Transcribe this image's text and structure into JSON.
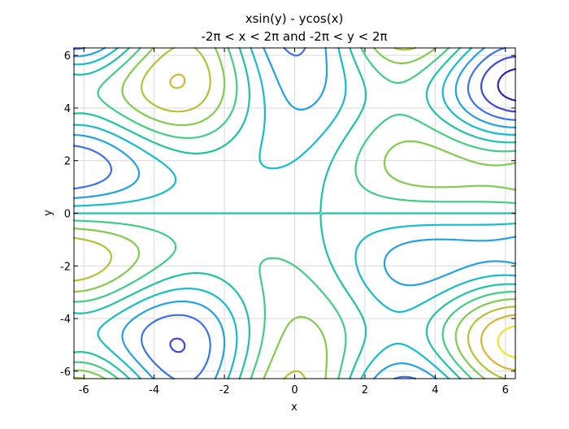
{
  "chart_data": {
    "type": "contour",
    "function": "x*sin(y) - y*cos(x)",
    "title": "xsin(y) - ycos(x)",
    "subtitle": "-2π < x < 2π and -2π < y < 2π",
    "xlabel": "x",
    "ylabel": "y",
    "xlim": [
      -6.283,
      6.283
    ],
    "ylim": [
      -6.283,
      6.283
    ],
    "xticks": [
      -6,
      -4,
      -2,
      0,
      2,
      4,
      6
    ],
    "yticks": [
      -6,
      -4,
      -2,
      0,
      2,
      4,
      6
    ],
    "grid": true,
    "levels": [
      -10,
      -8,
      -6,
      -4,
      -2,
      0,
      2,
      4,
      6,
      8,
      10
    ],
    "level_colors": [
      "#3b1fb0",
      "#4046e0",
      "#3c72f0",
      "#23a0e6",
      "#14bccc",
      "#1dc3a4",
      "#3fce82",
      "#80cc4e",
      "#b5c234",
      "#dcb232",
      "#f4e125"
    ]
  }
}
